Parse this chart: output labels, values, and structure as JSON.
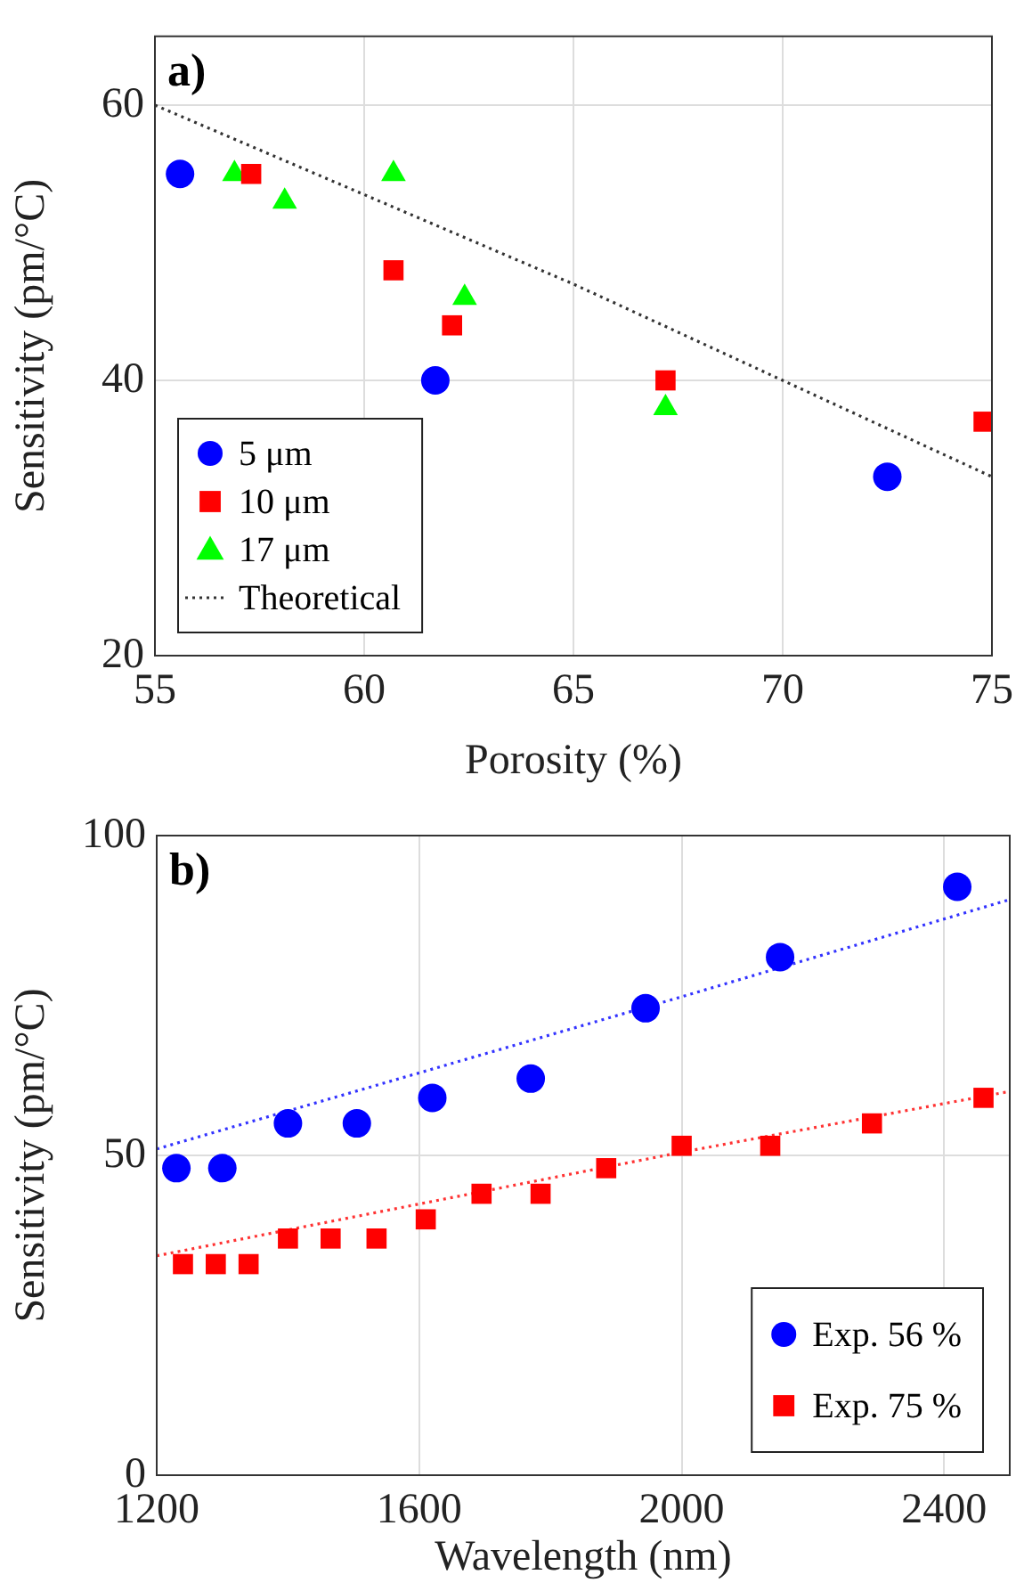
{
  "chart_data": [
    {
      "type": "scatter",
      "title": "a)",
      "xlabel": "Porosity (%)",
      "ylabel": "Sensitivity (pm/°C)",
      "xlim": [
        55,
        75
      ],
      "xticks": [
        55,
        60,
        65,
        70,
        75
      ],
      "ylim": [
        20,
        65
      ],
      "yticks": [
        20,
        40,
        60
      ],
      "grid": true,
      "legend": "bottom left",
      "series": [
        {
          "name": "5 μm",
          "color": "#0000ff",
          "marker": "circle",
          "x": [
            55.6,
            61.7,
            72.5
          ],
          "values": [
            55,
            40,
            33
          ]
        },
        {
          "name": "10 μm",
          "color": "#ff0000",
          "marker": "square",
          "x": [
            57.3,
            60.7,
            62.1,
            67.2,
            74.8
          ],
          "values": [
            55,
            48,
            44,
            40,
            37
          ]
        },
        {
          "name": "17 μm",
          "color": "#00ff00",
          "marker": "triangle",
          "x": [
            56.9,
            58.1,
            60.7,
            62.4,
            67.2
          ],
          "values": [
            55,
            53,
            55,
            46,
            38
          ]
        },
        {
          "name": "Theoretical",
          "type": "line",
          "color": "#333333",
          "marker": "none",
          "line_style": "dotted",
          "x": [
            55,
            60,
            65,
            70,
            75
          ],
          "values": [
            60,
            53.5,
            47,
            40,
            33
          ]
        }
      ]
    },
    {
      "type": "scatter",
      "title": "b)",
      "xlabel": "Wavelength (nm)",
      "ylabel": "Sensitivity (pm/°C)",
      "xlim": [
        1200,
        2500
      ],
      "xticks": [
        1200,
        1600,
        2000,
        2400
      ],
      "ylim": [
        0,
        100
      ],
      "yticks": [
        0,
        50,
        100
      ],
      "grid": true,
      "legend": "bottom right",
      "series": [
        {
          "name": "Exp. 56 %",
          "color": "#0000ff",
          "marker": "circle",
          "x": [
            1230,
            1300,
            1400,
            1505,
            1620,
            1770,
            1945,
            2150,
            2420
          ],
          "values": [
            48,
            48,
            55,
            55,
            59,
            62,
            73,
            81,
            92
          ]
        },
        {
          "name": "Exp. 75 %",
          "color": "#ff0000",
          "marker": "square",
          "x": [
            1240,
            1290,
            1340,
            1400,
            1465,
            1535,
            1610,
            1695,
            1785,
            1885,
            2000,
            2135,
            2290,
            2460
          ],
          "values": [
            33,
            33,
            33,
            37,
            37,
            37,
            40,
            44,
            44,
            48,
            51.5,
            51.5,
            55,
            59
          ]
        },
        {
          "type": "line",
          "color": "#3333ff",
          "marker": "none",
          "line_style": "dotted",
          "x": [
            1200,
            2000,
            2500
          ],
          "values": [
            51,
            74.8,
            90
          ]
        },
        {
          "type": "line",
          "color": "#ff3333",
          "marker": "none",
          "line_style": "dotted",
          "x": [
            1200,
            2000,
            2500
          ],
          "values": [
            34.3,
            50.5,
            60
          ]
        }
      ]
    }
  ]
}
